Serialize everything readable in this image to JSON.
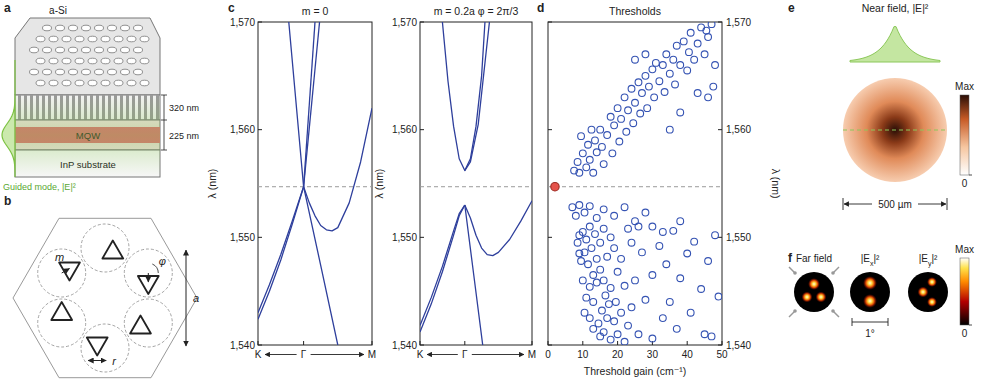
{
  "panel_labels": [
    "a",
    "b",
    "c",
    "d",
    "e",
    "f"
  ],
  "device": {
    "top_layer": "a-Si",
    "layer_thicknesses": [
      "320 nm",
      "225 nm"
    ],
    "active_layer": "MQW",
    "substrate": "InP substrate",
    "mode_label": "Guided mode, |E|²"
  },
  "unit_cell": {
    "labels": [
      "m",
      "φ",
      "a",
      "r"
    ]
  },
  "chart_data": [
    {
      "type": "line",
      "title": "m = 0",
      "y_label": "λ (nm)",
      "xlim": [
        0,
        1
      ],
      "xticks": [
        {
          "value": 0,
          "label": "K"
        },
        {
          "value": 0.4,
          "label": "Γ"
        },
        {
          "value": 1,
          "label": "M"
        }
      ],
      "ylim": [
        1540,
        1570
      ],
      "yticks": [
        {
          "value": 1540,
          "label": "1,540"
        },
        {
          "value": 1550,
          "label": "1,550"
        },
        {
          "value": 1560,
          "label": "1,560"
        },
        {
          "value": 1570,
          "label": "1,570"
        }
      ],
      "reference_line": 1554.7,
      "series": [
        {
          "color": "#2e3f9c",
          "x": [
            0,
            0.1,
            0.2,
            0.3,
            0.4
          ],
          "values": [
            1542.4,
            1545.0,
            1547.9,
            1551.2,
            1554.7
          ]
        },
        {
          "color": "#2e3f9c",
          "x": [
            0,
            0.1,
            0.2,
            0.3,
            0.4
          ],
          "values": [
            1543.0,
            1545.6,
            1548.4,
            1551.5,
            1554.7
          ]
        },
        {
          "color": "#2e3f9c",
          "x": [
            0.27,
            0.4,
            0.55,
            0.7
          ],
          "values": [
            1570,
            1554.7,
            1547.4,
            1540
          ]
        },
        {
          "color": "#2e3f9c",
          "x": [
            0.4,
            0.45,
            0.5,
            0.55,
            0.6,
            0.65,
            0.7,
            0.8,
            0.9,
            1.0
          ],
          "values": [
            1554.7,
            1553.2,
            1552.0,
            1551.1,
            1550.7,
            1550.6,
            1550.9,
            1553.2,
            1557.0,
            1562.0
          ]
        },
        {
          "color": "#2e3f9c",
          "x": [
            0.4,
            0.5
          ],
          "values": [
            1554.7,
            1570
          ]
        },
        {
          "color": "#2e3f9c",
          "x": [
            0.4,
            0.54
          ],
          "values": [
            1554.7,
            1570
          ]
        }
      ]
    },
    {
      "type": "line",
      "title": "m = 0.2a φ = 2π/3",
      "y_label": "λ (nm)",
      "xlim": [
        0,
        1
      ],
      "xticks": [
        {
          "value": 0,
          "label": "K"
        },
        {
          "value": 0.4,
          "label": "Γ"
        },
        {
          "value": 1,
          "label": "M"
        }
      ],
      "ylim": [
        1540,
        1570
      ],
      "yticks": [
        {
          "value": 1540,
          "label": "1,540"
        },
        {
          "value": 1550,
          "label": "1,550"
        },
        {
          "value": 1560,
          "label": "1,560"
        },
        {
          "value": 1570,
          "label": "1,570"
        }
      ],
      "reference_line": 1554.7,
      "series": [
        {
          "color": "#2e3f9c",
          "x": [
            0.2,
            0.25,
            0.3,
            0.35,
            0.4,
            0.45,
            0.5,
            0.55,
            0.58
          ],
          "values": [
            1570,
            1564.5,
            1560.3,
            1557.3,
            1556.2,
            1557.3,
            1560.3,
            1565.0,
            1570
          ]
        },
        {
          "color": "#2e3f9c",
          "x": [
            0.4,
            0.45,
            0.52,
            0.62
          ],
          "values": [
            1556.2,
            1557.0,
            1560.5,
            1570
          ]
        },
        {
          "color": "#2e3f9c",
          "x": [
            0,
            0.1,
            0.2,
            0.3,
            0.35,
            0.4
          ],
          "values": [
            1541.2,
            1543.8,
            1546.8,
            1550.2,
            1552.0,
            1553.0
          ]
        },
        {
          "color": "#2e3f9c",
          "x": [
            0,
            0.1,
            0.2,
            0.3,
            0.35,
            0.4
          ],
          "values": [
            1541.8,
            1544.4,
            1547.3,
            1550.6,
            1552.2,
            1553.0
          ]
        },
        {
          "color": "#2e3f9c",
          "x": [
            0.4,
            0.45,
            0.5,
            0.55,
            0.6,
            0.65,
            0.7,
            0.8,
            0.9,
            1.0
          ],
          "values": [
            1553.0,
            1551.8,
            1550.2,
            1549.0,
            1548.4,
            1548.3,
            1548.6,
            1549.8,
            1551.5,
            1553.4
          ]
        },
        {
          "color": "#2e3f9c",
          "x": [
            0.4,
            0.48,
            0.56
          ],
          "values": [
            1553.0,
            1546.5,
            1540
          ]
        }
      ]
    },
    {
      "type": "scatter",
      "title": "Thresholds",
      "x_label": "Threshold gain (cm⁻¹)",
      "y_label": "λ (nm)",
      "xlim": [
        0,
        50
      ],
      "xticks": [
        0,
        10,
        20,
        30,
        40,
        50
      ],
      "ylim": [
        1540,
        1570
      ],
      "yticks": [
        {
          "value": 1540,
          "label": "1,540"
        },
        {
          "value": 1550,
          "label": "1,550"
        },
        {
          "value": 1560,
          "label": "1,560"
        },
        {
          "value": 1570,
          "label": "1,570"
        }
      ],
      "reference_line": 1554.7,
      "series": [
        {
          "color": "#3553b3",
          "marker": "open-circle",
          "x": [
            7.5,
            8.5,
            9,
            10,
            11,
            11.5,
            12,
            13,
            13.5,
            14,
            15,
            15.5,
            16,
            17,
            18,
            18.5,
            19,
            20,
            20.5,
            21,
            22,
            22.5,
            23,
            24,
            24.5,
            25,
            26,
            26.5,
            27,
            28,
            28.5,
            29,
            30,
            30.5,
            31,
            32,
            33,
            33.5,
            34,
            35,
            36,
            36.5,
            37,
            38,
            39,
            40,
            40.5,
            41,
            42,
            43,
            44,
            45,
            46,
            47,
            48,
            47.5,
            46,
            43,
            38,
            35,
            9.5,
            12.5,
            28,
            25,
            45.5,
            7,
            8,
            9,
            10.5,
            12,
            14,
            16,
            19,
            22,
            25,
            28,
            30,
            10,
            11,
            12,
            10.5,
            11.5,
            12.5,
            13,
            14,
            13.5,
            15,
            12,
            13,
            14,
            15,
            16,
            15.5,
            16.5,
            17,
            14.5,
            13,
            15,
            16,
            18,
            17.5,
            18,
            19,
            20,
            19.5,
            21,
            20,
            17,
            18,
            16,
            19,
            21,
            22,
            23,
            22,
            24,
            25,
            26,
            24,
            27,
            23,
            26,
            28,
            30,
            30,
            32,
            33,
            34,
            35,
            36,
            37,
            38,
            40,
            41,
            42,
            44,
            45,
            46,
            48,
            49,
            47,
            38,
            33,
            8.5,
            9,
            9.5,
            10,
            9,
            11,
            10.5,
            12
          ],
          "values": [
            1556.2,
            1557.0,
            1556.0,
            1557.8,
            1556.5,
            1558.6,
            1557.2,
            1556.0,
            1559.0,
            1557.9,
            1560.0,
            1558.4,
            1556.8,
            1559.5,
            1561.2,
            1557.8,
            1560.4,
            1562.0,
            1558.9,
            1561.0,
            1563.0,
            1559.8,
            1561.8,
            1563.8,
            1560.6,
            1562.5,
            1564.4,
            1561.5,
            1563.4,
            1565.0,
            1562.0,
            1564.0,
            1565.6,
            1563.0,
            1566.2,
            1564.5,
            1566.0,
            1563.5,
            1567.0,
            1565.2,
            1566.5,
            1564.2,
            1567.8,
            1566.0,
            1568.2,
            1565.5,
            1567.2,
            1569.0,
            1566.5,
            1568.0,
            1569.5,
            1567.0,
            1568.6,
            1569.8,
            1566.0,
            1564.0,
            1563.0,
            1563.4,
            1561.6,
            1560.0,
            1559.4,
            1560.0,
            1567.0,
            1566.5,
            1569.2,
            1552.8,
            1552.0,
            1553.0,
            1552.3,
            1552.9,
            1551.8,
            1552.6,
            1552.0,
            1552.8,
            1551.5,
            1552.3,
            1551.0,
            1550.5,
            1549.8,
            1551.0,
            1548.6,
            1547.5,
            1549.0,
            1546.5,
            1548.0,
            1550.3,
            1549.5,
            1545.4,
            1544.0,
            1545.8,
            1547.0,
            1546.0,
            1543.2,
            1544.6,
            1542.5,
            1542.0,
            1541.5,
            1540.8,
            1541.2,
            1540.5,
            1543.8,
            1545.3,
            1542.2,
            1541.0,
            1544.0,
            1543.0,
            1546.8,
            1548.2,
            1550.0,
            1550.8,
            1549.0,
            1548.0,
            1545.5,
            1541.8,
            1540.3,
            1543.5,
            1546.0,
            1541.0,
            1549.5,
            1548.6,
            1550.8,
            1551.0,
            1544.2,
            1546.5,
            1540.6,
            1549.2,
            1542.5,
            1547.5,
            1544.0,
            1550.6,
            1541.5,
            1546.2,
            1548.5,
            1543.0,
            1549.6,
            1545.2,
            1541.0,
            1547.8,
            1550.2,
            1544.5,
            1540.8,
            1551.5,
            1550.5,
            1549.5,
            1550.2,
            1547.8,
            1546.0,
            1548.5,
            1544.4,
            1543.0,
            1542.5
          ]
        },
        {
          "color": "#e5534b",
          "marker": "filled-circle",
          "x": [
            2
          ],
          "values": [
            1554.7
          ]
        }
      ]
    }
  ],
  "near_field": {
    "title": "Near field, |E|²",
    "scale_label": "500 µm",
    "colorbar_max": "Max",
    "colorbar_min": 0
  },
  "far_field": {
    "titles": [
      [
        "Far field"
      ],
      [
        "|E",
        "x",
        "|²"
      ],
      [
        "|E",
        "y",
        "|²"
      ]
    ],
    "scale_label": "1°",
    "colorbar_max": "Max",
    "colorbar_min": 0
  }
}
